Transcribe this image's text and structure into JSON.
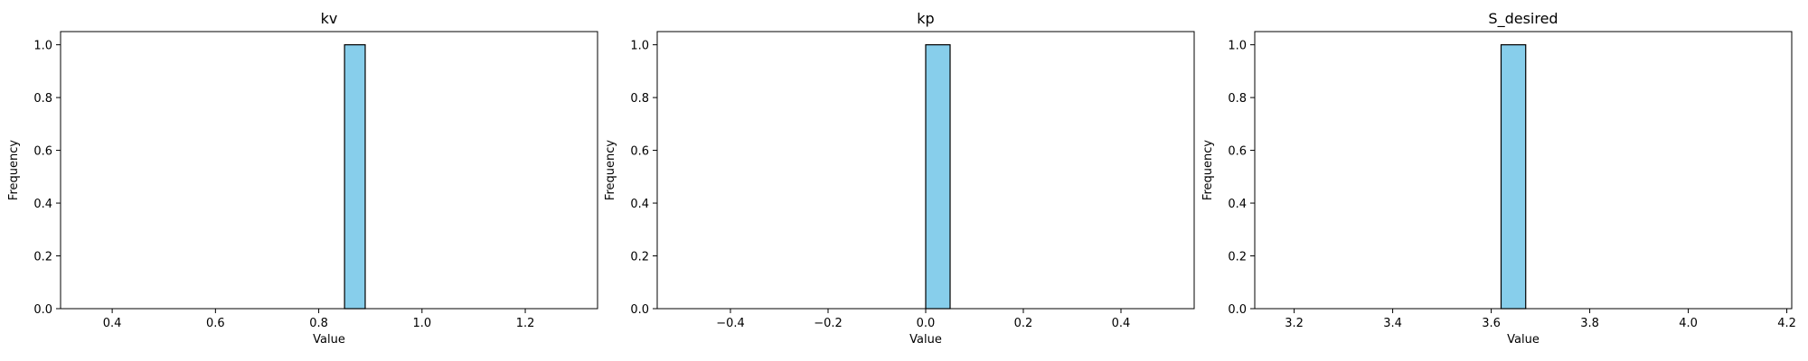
{
  "colors": {
    "bar_fill": "#87ceeb",
    "bar_edge": "#000000",
    "axis": "#000000",
    "background": "#ffffff"
  },
  "chart_data": [
    {
      "type": "bar",
      "title": "kv",
      "xlabel": "Value",
      "ylabel": "Frequency",
      "xlim": [
        0.3,
        1.34
      ],
      "ylim": [
        0,
        1.05
      ],
      "xticks": [
        0.4,
        0.6,
        0.8,
        1.0,
        1.2
      ],
      "xtick_labels": [
        "0.4",
        "0.6",
        "0.8",
        "1.0",
        "1.2"
      ],
      "yticks": [
        0.0,
        0.2,
        0.4,
        0.6,
        0.8,
        1.0
      ],
      "ytick_labels": [
        "0.0",
        "0.2",
        "0.4",
        "0.6",
        "0.8",
        "1.0"
      ],
      "bins": [
        {
          "start": 0.35,
          "end": 0.4,
          "value": 0
        },
        {
          "start": 0.4,
          "end": 0.45,
          "value": 0
        },
        {
          "start": 0.45,
          "end": 0.5,
          "value": 0
        },
        {
          "start": 0.5,
          "end": 0.55,
          "value": 0
        },
        {
          "start": 0.55,
          "end": 0.6,
          "value": 0
        },
        {
          "start": 0.6,
          "end": 0.65,
          "value": 0
        },
        {
          "start": 0.65,
          "end": 0.7,
          "value": 0
        },
        {
          "start": 0.7,
          "end": 0.75,
          "value": 0
        },
        {
          "start": 0.75,
          "end": 0.8,
          "value": 0
        },
        {
          "start": 0.8,
          "end": 0.85,
          "value": 0
        },
        {
          "start": 0.85,
          "end": 0.89,
          "value": 1
        },
        {
          "start": 0.89,
          "end": 0.94,
          "value": 0
        },
        {
          "start": 0.94,
          "end": 0.99,
          "value": 0
        },
        {
          "start": 0.99,
          "end": 1.04,
          "value": 0
        },
        {
          "start": 1.04,
          "end": 1.09,
          "value": 0
        },
        {
          "start": 1.09,
          "end": 1.14,
          "value": 0
        },
        {
          "start": 1.14,
          "end": 1.19,
          "value": 0
        },
        {
          "start": 1.19,
          "end": 1.24,
          "value": 0
        },
        {
          "start": 1.24,
          "end": 1.29,
          "value": 0
        },
        {
          "start": 1.29,
          "end": 1.34,
          "value": 0
        }
      ]
    },
    {
      "type": "bar",
      "title": "kp",
      "xlabel": "Value",
      "ylabel": "Frequency",
      "xlim": [
        -0.55,
        0.55
      ],
      "ylim": [
        0,
        1.05
      ],
      "xticks": [
        -0.4,
        -0.2,
        0.0,
        0.2,
        0.4
      ],
      "xtick_labels": [
        "−0.4",
        "−0.2",
        "0.0",
        "0.2",
        "0.4"
      ],
      "yticks": [
        0.0,
        0.2,
        0.4,
        0.6,
        0.8,
        1.0
      ],
      "ytick_labels": [
        "0.0",
        "0.2",
        "0.4",
        "0.6",
        "0.8",
        "1.0"
      ],
      "bins": [
        {
          "start": -0.5,
          "end": -0.45,
          "value": 0
        },
        {
          "start": -0.45,
          "end": -0.4,
          "value": 0
        },
        {
          "start": -0.4,
          "end": -0.35,
          "value": 0
        },
        {
          "start": -0.35,
          "end": -0.3,
          "value": 0
        },
        {
          "start": -0.3,
          "end": -0.25,
          "value": 0
        },
        {
          "start": -0.25,
          "end": -0.2,
          "value": 0
        },
        {
          "start": -0.2,
          "end": -0.15,
          "value": 0
        },
        {
          "start": -0.15,
          "end": -0.1,
          "value": 0
        },
        {
          "start": -0.1,
          "end": -0.05,
          "value": 0
        },
        {
          "start": -0.05,
          "end": 0.0,
          "value": 0
        },
        {
          "start": 0.0,
          "end": 0.05,
          "value": 1
        },
        {
          "start": 0.05,
          "end": 0.1,
          "value": 0
        },
        {
          "start": 0.1,
          "end": 0.15,
          "value": 0
        },
        {
          "start": 0.15,
          "end": 0.2,
          "value": 0
        },
        {
          "start": 0.2,
          "end": 0.25,
          "value": 0
        },
        {
          "start": 0.25,
          "end": 0.3,
          "value": 0
        },
        {
          "start": 0.3,
          "end": 0.35,
          "value": 0
        },
        {
          "start": 0.35,
          "end": 0.4,
          "value": 0
        },
        {
          "start": 0.4,
          "end": 0.45,
          "value": 0
        },
        {
          "start": 0.45,
          "end": 0.5,
          "value": 0
        }
      ]
    },
    {
      "type": "bar",
      "title": "S_desired",
      "xlabel": "Value",
      "ylabel": "Frequency",
      "xlim": [
        3.12,
        4.21
      ],
      "ylim": [
        0,
        1.05
      ],
      "xticks": [
        3.2,
        3.4,
        3.6,
        3.8,
        4.0,
        4.2
      ],
      "xtick_labels": [
        "3.2",
        "3.4",
        "3.6",
        "3.8",
        "4.0",
        "4.2"
      ],
      "yticks": [
        0.0,
        0.2,
        0.4,
        0.6,
        0.8,
        1.0
      ],
      "ytick_labels": [
        "0.0",
        "0.2",
        "0.4",
        "0.6",
        "0.8",
        "1.0"
      ],
      "bins": [
        {
          "start": 3.17,
          "end": 3.22,
          "value": 0
        },
        {
          "start": 3.22,
          "end": 3.27,
          "value": 0
        },
        {
          "start": 3.27,
          "end": 3.32,
          "value": 0
        },
        {
          "start": 3.32,
          "end": 3.37,
          "value": 0
        },
        {
          "start": 3.37,
          "end": 3.42,
          "value": 0
        },
        {
          "start": 3.42,
          "end": 3.47,
          "value": 0
        },
        {
          "start": 3.47,
          "end": 3.52,
          "value": 0
        },
        {
          "start": 3.52,
          "end": 3.57,
          "value": 0
        },
        {
          "start": 3.57,
          "end": 3.62,
          "value": 0
        },
        {
          "start": 3.62,
          "end": 3.67,
          "value": 1
        },
        {
          "start": 3.67,
          "end": 3.72,
          "value": 0
        },
        {
          "start": 3.72,
          "end": 3.77,
          "value": 0
        },
        {
          "start": 3.77,
          "end": 3.82,
          "value": 0
        },
        {
          "start": 3.82,
          "end": 3.87,
          "value": 0
        },
        {
          "start": 3.87,
          "end": 3.92,
          "value": 0
        },
        {
          "start": 3.92,
          "end": 3.97,
          "value": 0
        },
        {
          "start": 3.97,
          "end": 4.02,
          "value": 0
        },
        {
          "start": 4.02,
          "end": 4.07,
          "value": 0
        },
        {
          "start": 4.07,
          "end": 4.12,
          "value": 0
        },
        {
          "start": 4.12,
          "end": 4.17,
          "value": 0
        }
      ]
    }
  ]
}
